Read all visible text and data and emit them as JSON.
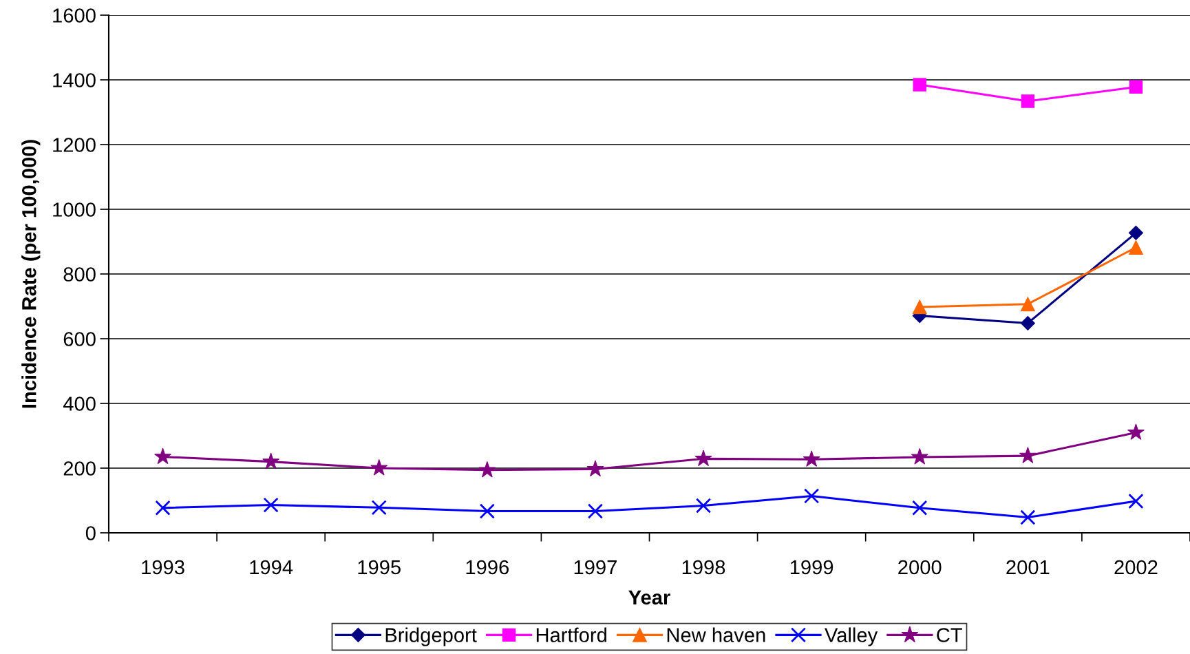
{
  "chart_data": {
    "type": "line",
    "xlabel": "Year",
    "ylabel": "Incidence Rate (per 100,000)",
    "categories": [
      "1993",
      "1994",
      "1995",
      "1996",
      "1997",
      "1998",
      "1999",
      "2000",
      "2001",
      "2002"
    ],
    "ylim": [
      0,
      1600
    ],
    "yticks": [
      0,
      200,
      400,
      600,
      800,
      1000,
      1200,
      1400,
      1600
    ],
    "grid": "y",
    "legend": "bottom",
    "line_style": "solid",
    "series": [
      {
        "name": "Bridgeport",
        "color": "#000080",
        "marker": "diamond",
        "values": [
          null,
          null,
          null,
          null,
          null,
          null,
          null,
          671,
          648,
          927
        ]
      },
      {
        "name": "Hartford",
        "color": "#ff00ff",
        "marker": "square",
        "values": [
          null,
          null,
          null,
          null,
          null,
          null,
          null,
          1385,
          1334,
          1378
        ]
      },
      {
        "name": "New haven",
        "color": "#ff6600",
        "marker": "triangle",
        "values": [
          null,
          null,
          null,
          null,
          null,
          null,
          null,
          698,
          707,
          882
        ]
      },
      {
        "name": "Valley",
        "color": "#0000ff",
        "marker": "cross",
        "values": [
          77,
          86,
          78,
          67,
          67,
          84,
          114,
          77,
          48,
          98
        ]
      },
      {
        "name": "CT",
        "color": "#800080",
        "marker": "star",
        "values": [
          235,
          220,
          200,
          194,
          197,
          229,
          227,
          234,
          238,
          310
        ]
      }
    ]
  }
}
